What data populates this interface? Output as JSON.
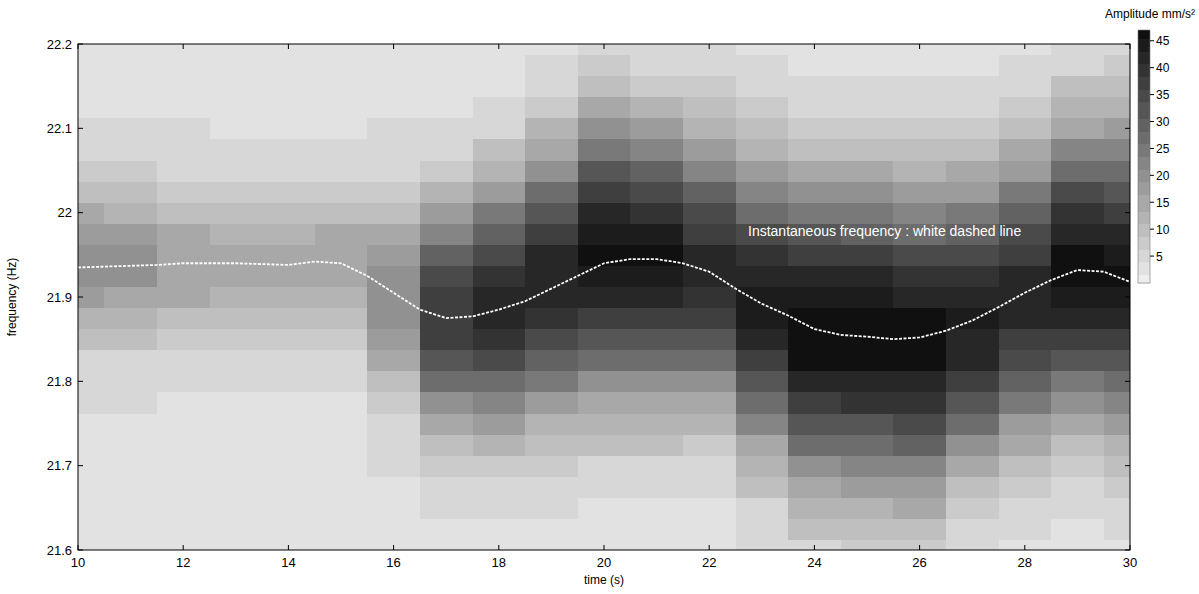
{
  "chart_data": {
    "type": "heatmap",
    "x_label": "time (s)",
    "y_label": "frequency (Hz)",
    "xlim": [
      10,
      30
    ],
    "ylim": [
      21.6,
      22.2
    ],
    "xticks": [
      10,
      12,
      14,
      16,
      18,
      20,
      22,
      24,
      26,
      28,
      30
    ],
    "yticks": [
      21.6,
      21.7,
      21.8,
      21.9,
      22,
      22.1,
      22.2
    ],
    "x": [
      10,
      11,
      12,
      13,
      14,
      15,
      16,
      17,
      18,
      19,
      20,
      21,
      22,
      23,
      24,
      25,
      26,
      27,
      28,
      29,
      30
    ],
    "y": [
      21.6,
      21.625,
      21.65,
      21.675,
      21.7,
      21.725,
      21.75,
      21.775,
      21.8,
      21.825,
      21.85,
      21.875,
      21.9,
      21.925,
      21.95,
      21.975,
      22,
      22.025,
      22.05,
      22.075,
      22.1,
      22.125,
      22.15,
      22.175,
      22.2
    ],
    "values": [
      [
        3,
        3,
        3,
        3,
        3,
        3,
        3,
        4,
        5,
        6,
        9,
        13,
        17,
        19,
        20,
        18,
        14,
        10,
        7,
        5,
        4,
        3,
        3,
        3,
        3
      ],
      [
        3,
        3,
        3,
        3,
        3,
        3,
        3,
        4,
        4,
        6,
        9,
        12,
        16,
        19,
        19,
        17,
        13,
        10,
        7,
        5,
        4,
        3,
        3,
        3,
        3
      ],
      [
        3,
        3,
        3,
        3,
        3,
        3,
        3,
        3,
        4,
        6,
        8,
        11,
        14,
        16,
        16,
        14,
        11,
        8,
        6,
        4,
        4,
        3,
        3,
        3,
        3
      ],
      [
        3,
        3,
        3,
        3,
        3,
        3,
        3,
        3,
        4,
        5,
        7,
        10,
        13,
        15,
        15,
        13,
        11,
        8,
        6,
        4,
        3,
        3,
        3,
        3,
        3
      ],
      [
        3,
        3,
        3,
        3,
        3,
        3,
        3,
        3,
        4,
        5,
        7,
        10,
        13,
        15,
        15,
        13,
        11,
        8,
        6,
        4,
        3,
        3,
        3,
        3,
        3
      ],
      [
        3,
        3,
        3,
        3,
        3,
        3,
        3,
        3,
        4,
        5,
        7,
        10,
        13,
        15,
        15,
        14,
        11,
        8,
        6,
        4,
        3,
        3,
        3,
        3,
        3
      ],
      [
        3,
        3,
        3,
        3,
        4,
        4,
        6,
        8,
        11,
        14,
        18,
        20,
        21,
        20,
        18,
        14,
        11,
        8,
        6,
        4,
        4,
        3,
        3,
        3,
        3
      ],
      [
        2,
        3,
        4,
        5,
        7,
        11,
        15,
        21,
        26,
        32,
        36,
        38,
        37,
        34,
        29,
        23,
        17,
        12,
        8,
        6,
        4,
        3,
        2,
        2,
        2
      ],
      [
        3,
        3,
        4,
        6,
        8,
        12,
        17,
        22,
        28,
        34,
        39,
        42,
        42,
        40,
        35,
        30,
        24,
        18,
        13,
        9,
        6,
        4,
        3,
        3,
        2
      ],
      [
        2,
        3,
        4,
        5,
        7,
        10,
        13,
        18,
        24,
        29,
        35,
        39,
        42,
        43,
        41,
        38,
        33,
        27,
        21,
        16,
        12,
        8,
        6,
        4,
        3
      ],
      [
        2,
        3,
        3,
        5,
        6,
        9,
        12,
        16,
        21,
        27,
        33,
        38,
        42,
        45,
        46,
        44,
        41,
        36,
        31,
        25,
        19,
        14,
        10,
        8,
        6
      ],
      [
        2,
        3,
        3,
        5,
        6,
        9,
        12,
        16,
        21,
        27,
        33,
        38,
        42,
        45,
        46,
        44,
        40,
        35,
        29,
        23,
        17,
        12,
        8,
        6,
        4
      ],
      [
        2,
        3,
        3,
        4,
        6,
        8,
        12,
        16,
        21,
        26,
        32,
        37,
        40,
        42,
        41,
        38,
        34,
        29,
        23,
        18,
        13,
        9,
        7,
        5,
        4
      ],
      [
        4,
        5,
        6,
        9,
        12,
        16,
        22,
        27,
        33,
        38,
        41,
        44,
        44,
        42,
        39,
        34,
        28,
        23,
        17,
        13,
        10,
        7,
        5,
        4,
        3
      ],
      [
        6,
        9,
        12,
        16,
        21,
        26,
        32,
        38,
        42,
        46,
        47,
        47,
        45,
        42,
        37,
        31,
        25,
        20,
        15,
        11,
        8,
        6,
        4,
        3,
        3
      ],
      [
        7,
        9,
        13,
        17,
        22,
        28,
        33,
        39,
        43,
        47,
        47,
        47,
        45,
        41,
        36,
        30,
        24,
        19,
        14,
        11,
        8,
        6,
        4,
        3,
        2
      ],
      [
        7,
        10,
        14,
        18,
        23,
        29,
        34,
        39,
        43,
        46,
        47,
        46,
        43,
        39,
        34,
        28,
        22,
        17,
        13,
        10,
        7,
        5,
        4,
        3,
        2
      ],
      [
        4,
        6,
        8,
        11,
        15,
        20,
        26,
        31,
        37,
        41,
        43,
        44,
        43,
        39,
        35,
        29,
        24,
        18,
        14,
        10,
        7,
        5,
        4,
        3,
        2
      ],
      [
        3,
        4,
        5,
        7,
        10,
        14,
        18,
        24,
        29,
        34,
        38,
        41,
        42,
        41,
        38,
        34,
        29,
        24,
        18,
        14,
        10,
        7,
        5,
        4,
        3
      ],
      [
        3,
        3,
        4,
        6,
        8,
        11,
        15,
        20,
        25,
        31,
        37,
        42,
        45,
        47,
        46,
        43,
        39,
        34,
        28,
        22,
        16,
        12,
        9,
        6,
        5
      ],
      [
        3,
        4,
        5,
        7,
        9,
        13,
        17,
        22,
        27,
        33,
        38,
        42,
        45,
        46,
        45,
        42,
        38,
        33,
        27,
        22,
        17,
        13,
        9,
        7,
        5
      ]
    ],
    "colorbar": {
      "title": "Amplitude mm/s²",
      "range": [
        0,
        47
      ],
      "ticks": [
        5,
        10,
        15,
        20,
        25,
        30,
        35,
        40,
        45
      ]
    },
    "series": [
      {
        "type": "line",
        "color": "#ffffff",
        "line_style": "dashed",
        "x": [
          10,
          10.5,
          11,
          11.5,
          12,
          12.5,
          13,
          13.5,
          14,
          14.5,
          15,
          15.5,
          16,
          16.5,
          17,
          17.5,
          18,
          18.5,
          19,
          19.5,
          20,
          20.5,
          21,
          21.5,
          22,
          22.5,
          23,
          23.5,
          24,
          24.5,
          25,
          25.5,
          26,
          26.5,
          27,
          27.5,
          28,
          28.5,
          29,
          29.5,
          30
        ],
        "values": [
          21.935,
          21.936,
          21.937,
          21.938,
          21.94,
          21.94,
          21.94,
          21.939,
          21.938,
          21.942,
          21.94,
          21.925,
          21.905,
          21.885,
          21.875,
          21.877,
          21.885,
          21.895,
          21.91,
          21.925,
          21.94,
          21.945,
          21.945,
          21.94,
          21.93,
          21.91,
          21.892,
          21.878,
          21.862,
          21.855,
          21.853,
          21.85,
          21.852,
          21.86,
          21.872,
          21.888,
          21.905,
          21.92,
          21.932,
          21.93,
          21.918
        ]
      }
    ],
    "annotations": [
      {
        "text": "Instantaneous frequency : white dashed line"
      }
    ]
  }
}
